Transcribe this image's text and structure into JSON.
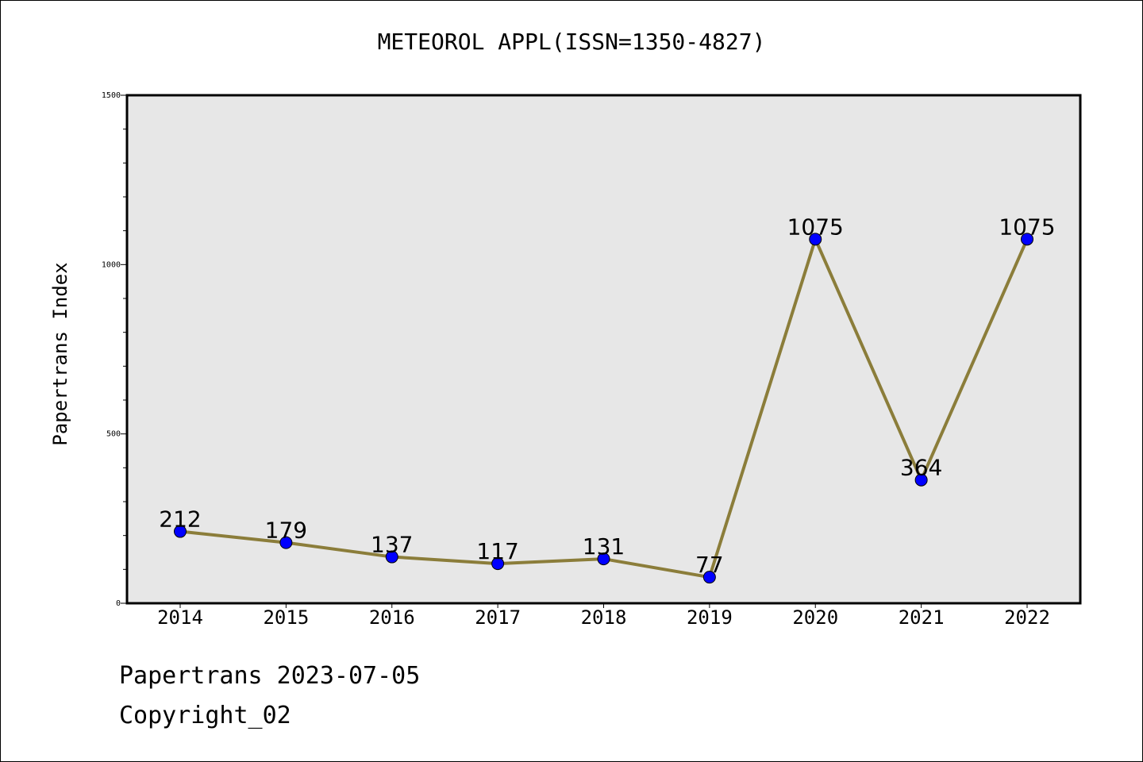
{
  "chart_data": {
    "type": "line",
    "title": "METEOROL APPL(ISSN=1350-4827)",
    "ylabel": "Papertrans Index",
    "xlabel": "",
    "categories": [
      "2014",
      "2015",
      "2016",
      "2017",
      "2018",
      "2019",
      "2020",
      "2021",
      "2022"
    ],
    "values": [
      212,
      179,
      137,
      117,
      131,
      77,
      1075,
      364,
      1075
    ],
    "data_labels": [
      "212",
      "179",
      "137",
      "117",
      "131",
      "77",
      "1075",
      "364",
      "1075"
    ],
    "ylim": [
      0,
      1500
    ],
    "yticks": [
      "0",
      "500",
      "1000",
      "1500"
    ],
    "grid": false,
    "colors": {
      "line": "#8b7d3a",
      "marker": "#0000ff",
      "plot_background": "#e7e7e7"
    }
  },
  "footer": {
    "line1": "Papertrans 2023-07-05",
    "line2": "Copyright_02"
  }
}
